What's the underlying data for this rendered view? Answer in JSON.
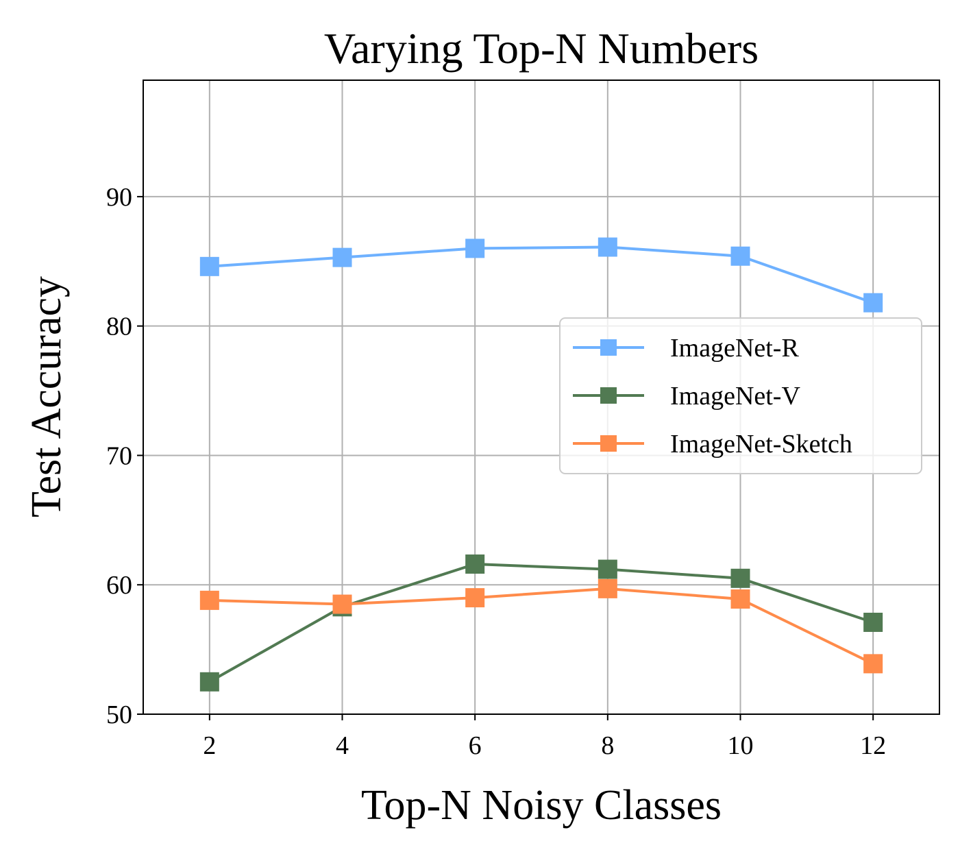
{
  "chart_data": {
    "type": "line",
    "title": "Varying Top-N Numbers",
    "xlabel": "Top-N Noisy Classes",
    "ylabel": "Test Accuracy",
    "x": [
      2,
      4,
      6,
      8,
      10,
      12
    ],
    "xlim": [
      1,
      13
    ],
    "ylim": [
      50,
      99
    ],
    "xticks": [
      2,
      4,
      6,
      8,
      10,
      12
    ],
    "yticks": [
      50,
      60,
      70,
      80,
      90
    ],
    "grid": true,
    "legend_position": "center-right",
    "marker": "square",
    "series": [
      {
        "name": "ImageNet-R",
        "color": "#6EB1FF",
        "values": [
          84.6,
          85.3,
          86.0,
          86.1,
          85.4,
          81.8
        ]
      },
      {
        "name": "ImageNet-V",
        "color": "#517A52",
        "values": [
          52.5,
          58.3,
          61.6,
          61.2,
          60.5,
          57.1
        ]
      },
      {
        "name": "ImageNet-Sketch",
        "color": "#FF8B4A",
        "values": [
          58.8,
          58.5,
          59.0,
          59.7,
          58.9,
          53.9
        ]
      }
    ]
  }
}
